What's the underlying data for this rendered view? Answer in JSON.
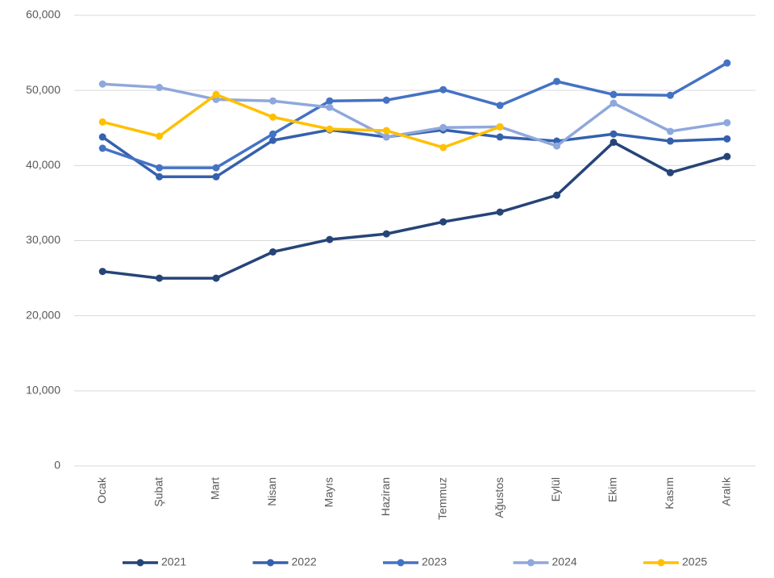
{
  "chart_data": {
    "type": "line",
    "categories": [
      "Ocak",
      "Şubat",
      "Mart",
      "Nisan",
      "Mayıs",
      "Haziran",
      "Temmuz",
      "Ağustos",
      "Eylül",
      "Ekim",
      "Kasım",
      "Aralık"
    ],
    "series": [
      {
        "name": "2021",
        "color": "#264478",
        "values": [
          25900,
          25000,
          25000,
          28500,
          30150,
          30900,
          32500,
          33800,
          36050,
          43100,
          39050,
          41200
        ]
      },
      {
        "name": "2022",
        "color": "#3560ad",
        "values": [
          43800,
          38500,
          38500,
          43350,
          44750,
          43800,
          44750,
          43800,
          43250,
          44200,
          43250,
          43550
        ]
      },
      {
        "name": "2023",
        "color": "#4472c4",
        "values": [
          42300,
          39700,
          39700,
          44200,
          48600,
          48700,
          50100,
          48000,
          51200,
          49450,
          49350,
          53650
        ]
      },
      {
        "name": "2024",
        "color": "#8fa8dc",
        "values": [
          50850,
          50400,
          48800,
          48600,
          47750,
          43800,
          45050,
          45150,
          42600,
          48300,
          44550,
          45700
        ]
      },
      {
        "name": "2025",
        "color": "#ffc000",
        "values": [
          45800,
          43900,
          49450,
          46450,
          44850,
          44650,
          42400,
          45150,
          null,
          null,
          null,
          null
        ]
      }
    ],
    "ylim": [
      0,
      60000
    ],
    "yticks": [
      0,
      {
        "value": 10000,
        "label": "10,000"
      },
      {
        "value": 20000,
        "label": "20,000"
      },
      {
        "value": 30000,
        "label": "30,000"
      },
      {
        "value": 40000,
        "label": "40,000"
      },
      {
        "value": 50000,
        "label": "50,000"
      },
      {
        "value": 60000,
        "label": "60,000"
      }
    ],
    "grid": true,
    "legend": "bottom"
  }
}
